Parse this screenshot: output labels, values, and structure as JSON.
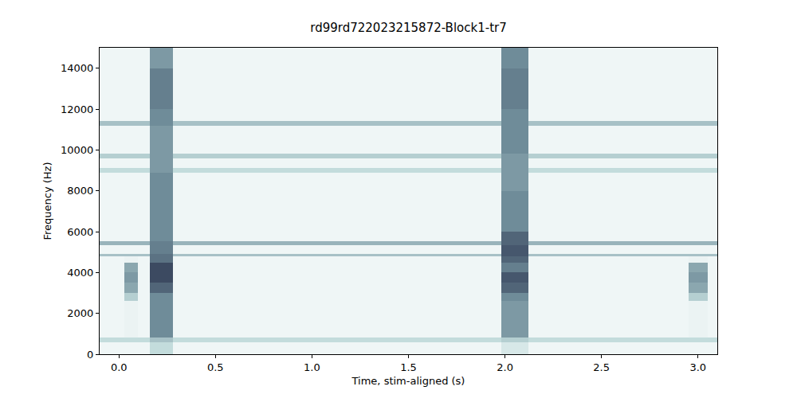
{
  "chart_data": {
    "type": "heatmap",
    "title": "rd99rd722023215872-Block1-tr7",
    "x_label": "Time, stim-aligned (s)",
    "y_label": "Frequency (Hz)",
    "xlim": [
      -0.1,
      3.1
    ],
    "ylim": [
      0,
      15000
    ],
    "xticks": [
      {
        "value": 0,
        "label": "0.0"
      },
      0.5,
      {
        "value": 1,
        "label": "1.0"
      },
      1.5,
      {
        "value": 2,
        "label": "2.0"
      },
      2.5,
      {
        "value": 3,
        "label": "3.0"
      }
    ],
    "yticks": [
      0,
      2000,
      4000,
      6000,
      8000,
      10000,
      12000,
      14000
    ],
    "grid": false,
    "zlim": [
      0,
      1
    ],
    "x_edges": [
      -0.1,
      0.03,
      0.1,
      0.16,
      0.28,
      1.98,
      2.12,
      2.95,
      3.05,
      3.1
    ],
    "y_edges": [
      0,
      600,
      800,
      2600,
      3000,
      3500,
      4000,
      4500,
      4800,
      4900,
      5350,
      5550,
      6000,
      8000,
      8900,
      9100,
      9600,
      9800,
      11200,
      11400,
      12000,
      14000,
      15000
    ],
    "z": [
      [
        0.08,
        0.08,
        0.08,
        0.3,
        0.08,
        0.2,
        0.08,
        0.08,
        0.08
      ],
      [
        0.3,
        0.3,
        0.3,
        0.4,
        0.3,
        0.35,
        0.3,
        0.3,
        0.3
      ],
      [
        0.08,
        0.1,
        0.08,
        0.6,
        0.08,
        0.55,
        0.08,
        0.1,
        0.08
      ],
      [
        0.08,
        0.35,
        0.08,
        0.6,
        0.08,
        0.6,
        0.08,
        0.35,
        0.08
      ],
      [
        0.08,
        0.5,
        0.08,
        0.75,
        0.08,
        0.75,
        0.08,
        0.5,
        0.08
      ],
      [
        0.08,
        0.55,
        0.08,
        0.85,
        0.08,
        0.8,
        0.08,
        0.55,
        0.08
      ],
      [
        0.08,
        0.5,
        0.08,
        0.85,
        0.08,
        0.65,
        0.08,
        0.5,
        0.08
      ],
      [
        0.08,
        0.1,
        0.08,
        0.7,
        0.08,
        0.75,
        0.08,
        0.1,
        0.08
      ],
      [
        0.4,
        0.4,
        0.4,
        0.7,
        0.4,
        0.8,
        0.4,
        0.4,
        0.4
      ],
      [
        0.08,
        0.08,
        0.08,
        0.65,
        0.08,
        0.8,
        0.08,
        0.08,
        0.08
      ],
      [
        0.45,
        0.45,
        0.45,
        0.65,
        0.45,
        0.75,
        0.45,
        0.45,
        0.45
      ],
      [
        0.08,
        0.08,
        0.08,
        0.6,
        0.08,
        0.75,
        0.08,
        0.08,
        0.08
      ],
      [
        0.08,
        0.08,
        0.08,
        0.6,
        0.08,
        0.6,
        0.08,
        0.08,
        0.08
      ],
      [
        0.08,
        0.08,
        0.08,
        0.6,
        0.08,
        0.55,
        0.08,
        0.08,
        0.08
      ],
      [
        0.3,
        0.3,
        0.3,
        0.55,
        0.3,
        0.55,
        0.3,
        0.3,
        0.3
      ],
      [
        0.08,
        0.08,
        0.08,
        0.55,
        0.08,
        0.55,
        0.08,
        0.08,
        0.08
      ],
      [
        0.35,
        0.35,
        0.35,
        0.55,
        0.35,
        0.55,
        0.35,
        0.35,
        0.35
      ],
      [
        0.08,
        0.08,
        0.08,
        0.55,
        0.08,
        0.6,
        0.08,
        0.08,
        0.08
      ],
      [
        0.4,
        0.4,
        0.4,
        0.6,
        0.4,
        0.6,
        0.4,
        0.4,
        0.4
      ],
      [
        0.08,
        0.08,
        0.08,
        0.6,
        0.08,
        0.6,
        0.08,
        0.08,
        0.08
      ],
      [
        0.08,
        0.08,
        0.08,
        0.65,
        0.08,
        0.65,
        0.08,
        0.08,
        0.08
      ],
      [
        0.08,
        0.08,
        0.08,
        0.55,
        0.08,
        0.6,
        0.08,
        0.08,
        0.08
      ]
    ]
  }
}
